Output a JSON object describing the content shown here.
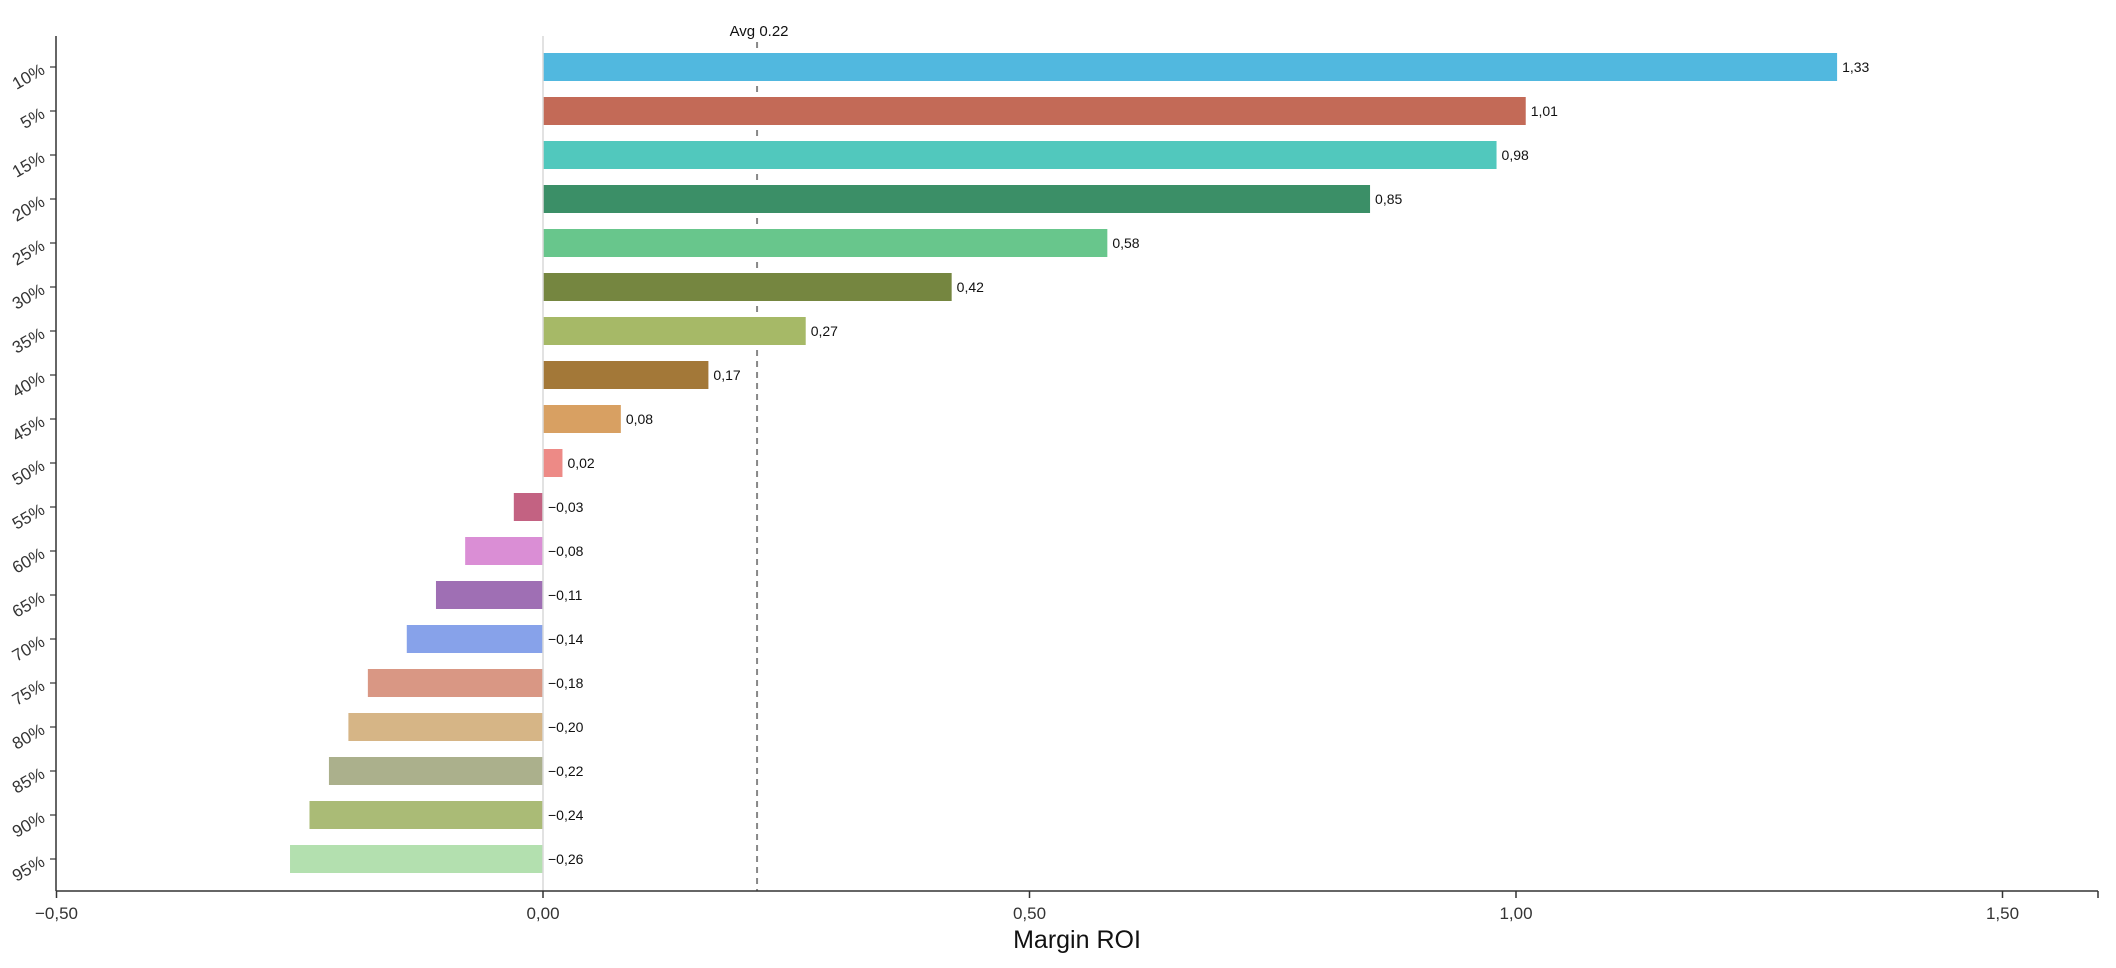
{
  "chart_data": {
    "type": "bar",
    "orientation": "horizontal",
    "title": "",
    "xlabel": "Margin ROI",
    "ylabel": "",
    "xlim": [
      -0.5,
      1.6
    ],
    "xticks": [
      -0.5,
      0.0,
      0.5,
      1.0,
      1.5
    ],
    "xtick_labels": [
      "−0,50",
      "0,00",
      "0,50",
      "1,00",
      "1,50"
    ],
    "grid": false,
    "average": {
      "value": 0.22,
      "label": "Avg 0.22"
    },
    "categories": [
      "10%",
      "5%",
      "15%",
      "20%",
      "25%",
      "30%",
      "35%",
      "40%",
      "45%",
      "50%",
      "55%",
      "60%",
      "65%",
      "70%",
      "75%",
      "80%",
      "85%",
      "90%",
      "95%"
    ],
    "values": [
      1.33,
      1.01,
      0.98,
      0.85,
      0.58,
      0.42,
      0.27,
      0.17,
      0.08,
      0.02,
      -0.03,
      -0.08,
      -0.11,
      -0.14,
      -0.18,
      -0.2,
      -0.22,
      -0.24,
      -0.26
    ],
    "value_labels": [
      "1,33",
      "1,01",
      "0,98",
      "0,85",
      "0,58",
      "0,42",
      "0,27",
      "0,17",
      "0,08",
      "0,02",
      "−0,03",
      "−0,08",
      "−0,11",
      "−0,14",
      "−0,18",
      "−0,20",
      "−0,22",
      "−0,24",
      "−0,26"
    ],
    "colors": [
      "#51b8df",
      "#c36a57",
      "#51c8bd",
      "#3b8f67",
      "#68c68c",
      "#758640",
      "#a6b967",
      "#a37838",
      "#d8a062",
      "#ed8a86",
      "#c36282",
      "#da8ed5",
      "#9f6fb4",
      "#87a2ea",
      "#d99784",
      "#d6b586",
      "#abb08c",
      "#aabb76",
      "#b3e0af"
    ]
  }
}
